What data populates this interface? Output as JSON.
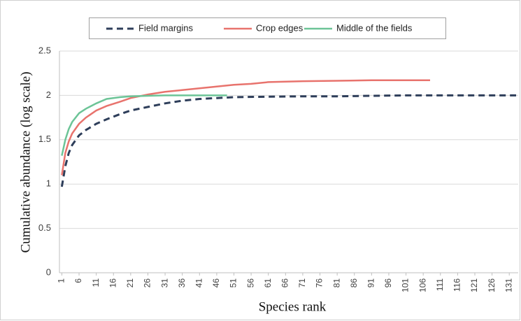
{
  "chart_data": {
    "type": "line",
    "y_label": "Cumulative abundance (log scale)",
    "x_label": "Species rank",
    "xlim": [
      0.3,
      133.6
    ],
    "xticks": [
      1,
      6,
      11,
      16,
      21,
      26,
      31,
      36,
      41,
      46,
      51,
      56,
      61,
      66,
      71,
      76,
      81,
      86,
      91,
      96,
      101,
      106,
      111,
      116,
      121,
      126,
      131
    ],
    "ylim": [
      0,
      2.5
    ],
    "yticks": [
      0,
      0.5,
      1,
      1.5,
      2,
      2.5
    ],
    "grid": true,
    "legend": "top",
    "series": [
      {
        "name": "Field margins",
        "color": "#2e3e5a",
        "dashed": true,
        "x": [
          1,
          2,
          3,
          4,
          6,
          8,
          11,
          14,
          18,
          21,
          26,
          31,
          36,
          41,
          46,
          51,
          61,
          71,
          81,
          91,
          101,
          111,
          121,
          133
        ],
        "values": [
          0.97,
          1.2,
          1.35,
          1.44,
          1.55,
          1.61,
          1.68,
          1.73,
          1.79,
          1.83,
          1.87,
          1.91,
          1.94,
          1.96,
          1.97,
          1.98,
          1.985,
          1.99,
          1.99,
          1.995,
          2.0,
          2.0,
          2.0,
          2.0
        ]
      },
      {
        "name": "Crop edges",
        "color": "#e8736d",
        "dashed": false,
        "x": [
          1,
          2,
          3,
          4,
          6,
          8,
          11,
          14,
          18,
          21,
          26,
          31,
          36,
          41,
          46,
          51,
          56,
          61,
          71,
          81,
          91,
          101,
          108
        ],
        "values": [
          1.1,
          1.35,
          1.48,
          1.57,
          1.68,
          1.75,
          1.83,
          1.88,
          1.93,
          1.97,
          2.01,
          2.04,
          2.06,
          2.08,
          2.1,
          2.12,
          2.13,
          2.15,
          2.16,
          2.165,
          2.17,
          2.17,
          2.17
        ]
      },
      {
        "name": "Middle of the fields",
        "color": "#6cc497",
        "dashed": false,
        "x": [
          1,
          2,
          3,
          4,
          6,
          8,
          11,
          14,
          18,
          21,
          26,
          31,
          36,
          41,
          46,
          49
        ],
        "values": [
          1.32,
          1.5,
          1.62,
          1.7,
          1.8,
          1.85,
          1.91,
          1.96,
          1.98,
          1.99,
          1.995,
          2.0,
          2.0,
          2.0,
          2.0,
          2.0
        ]
      }
    ]
  }
}
